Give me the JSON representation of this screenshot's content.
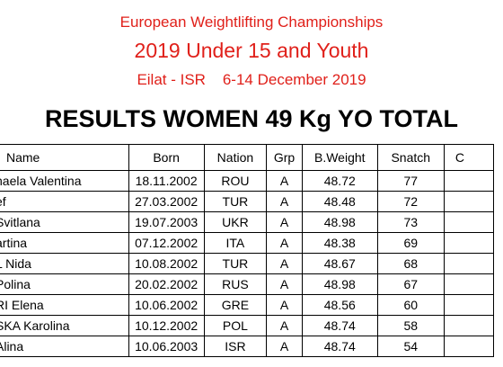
{
  "header": {
    "line1": "European Weightlifting Championships",
    "line2": "2019 Under 15 and Youth",
    "line3": "Eilat - ISR    6-14 December 2019"
  },
  "title": "RESULTS WOMEN 49 Kg YO TOTAL",
  "table": {
    "columns": [
      "Name",
      "Born",
      "Nation",
      "Grp",
      "B.Weight",
      "Snatch",
      "C"
    ],
    "rows": [
      {
        "name": "haela Valentina",
        "born": "18.11.2002",
        "nation": "ROU",
        "grp": "A",
        "bweight": "48.72",
        "snatch": "77"
      },
      {
        "name": "ef",
        "born": "27.03.2002",
        "nation": "TUR",
        "grp": "A",
        "bweight": "48.48",
        "snatch": "72"
      },
      {
        "name": "Svitlana",
        "born": "19.07.2003",
        "nation": "UKR",
        "grp": "A",
        "bweight": "48.98",
        "snatch": "73"
      },
      {
        "name": "artina",
        "born": "07.12.2002",
        "nation": "ITA",
        "grp": "A",
        "bweight": "48.38",
        "snatch": "69"
      },
      {
        "name": "L Nida",
        "born": "10.08.2002",
        "nation": "TUR",
        "grp": "A",
        "bweight": "48.67",
        "snatch": "68"
      },
      {
        "name": "Polina",
        "born": "20.02.2002",
        "nation": "RUS",
        "grp": "A",
        "bweight": "48.98",
        "snatch": "67"
      },
      {
        "name": "RI Elena",
        "born": "10.06.2002",
        "nation": "GRE",
        "grp": "A",
        "bweight": "48.56",
        "snatch": "60"
      },
      {
        "name": "SKA Karolina",
        "born": "10.12.2002",
        "nation": "POL",
        "grp": "A",
        "bweight": "48.74",
        "snatch": "58"
      },
      {
        "name": "Alina",
        "born": "10.06.2003",
        "nation": "ISR",
        "grp": "A",
        "bweight": "48.74",
        "snatch": "54"
      }
    ]
  }
}
